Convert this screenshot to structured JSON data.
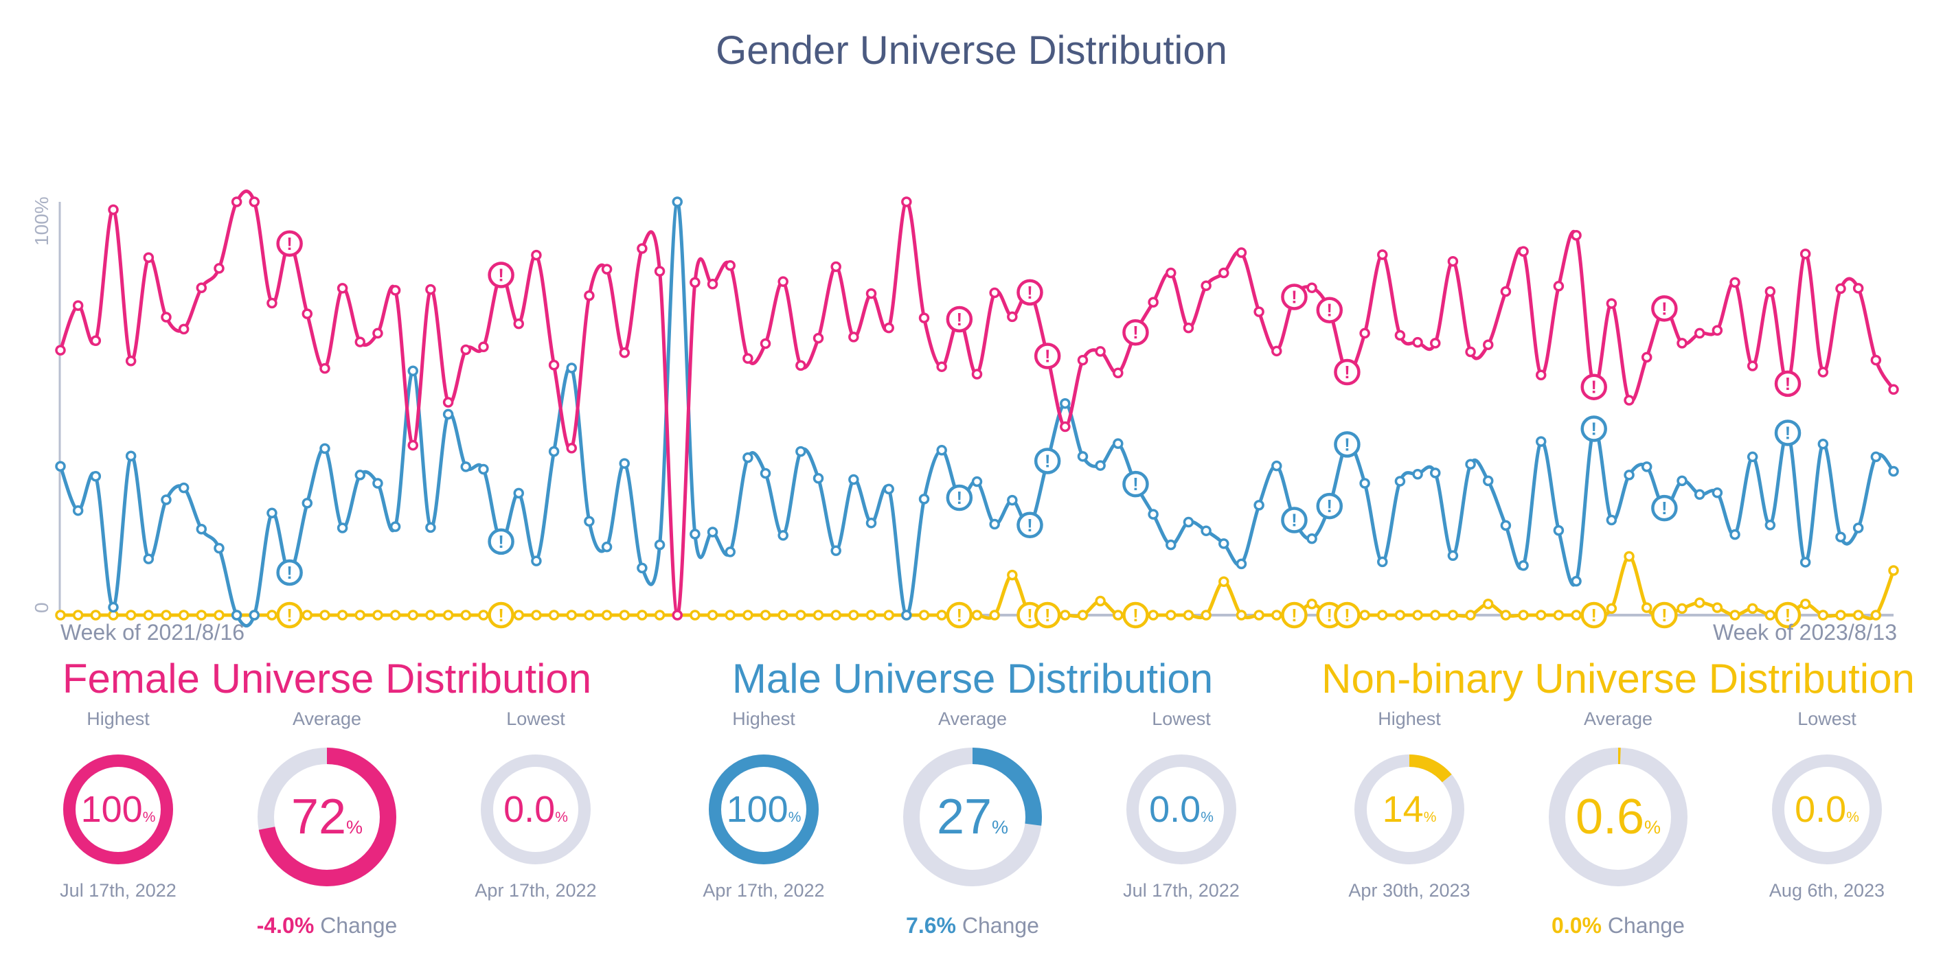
{
  "title": "Gender Universe Distribution",
  "chart_data": {
    "type": "line",
    "title": "Gender Universe Distribution",
    "x_interval": "week",
    "x_start_label": "Week of 2021/8/16",
    "x_end_label": "Week of 2023/8/13",
    "y_tick_labels": [
      "100%",
      "0"
    ],
    "ylim": [
      0,
      100
    ],
    "grid": false,
    "anomaly_indices": [
      13,
      25,
      51,
      55,
      56,
      61,
      70,
      72,
      73,
      87,
      91,
      98
    ],
    "series": [
      {
        "key": "female",
        "color": "#e8267f",
        "values": [
          64.1,
          74.9,
          66.4,
          98.1,
          61.5,
          86.5,
          72.1,
          69.2,
          79.2,
          83.9,
          100,
          100,
          75.5,
          89.9,
          72.9,
          59.7,
          79.1,
          66.1,
          68.2,
          78.6,
          41.1,
          78.8,
          51.5,
          64.2,
          64.9,
          82.3,
          70.5,
          87.1,
          60.5,
          40.4,
          77.3,
          83.7,
          63.5,
          88.7,
          83.2,
          0,
          80.5,
          80.1,
          84.6,
          62.1,
          65.7,
          80.7,
          60.4,
          67.0,
          84.3,
          67.3,
          77.8,
          69.5,
          100,
          71.9,
          60.1,
          71.6,
          58.3,
          78.0,
          72.2,
          78.1,
          62.7,
          45.6,
          61.7,
          63.8,
          58.6,
          68.4,
          75.7,
          82.8,
          69.5,
          79.7,
          82.8,
          87.7,
          73.4,
          63.9,
          77.0,
          79.2,
          73.8,
          58.8,
          68.2,
          87.2,
          67.7,
          66.0,
          65.8,
          85.6,
          63.7,
          65.4,
          78.3,
          88.0,
          58.1,
          79.6,
          91.9,
          55.2,
          75.4,
          52.0,
          62.4,
          74.2,
          65.8,
          68.2,
          68.9,
          80.5,
          60.3,
          78.3,
          56.0,
          87.4,
          58.8,
          79.0,
          79.1,
          61.7,
          54.6
        ]
      },
      {
        "key": "male",
        "color": "#3f94c8",
        "values": [
          36.0,
          25.3,
          33.6,
          1.9,
          38.5,
          13.6,
          27.9,
          30.8,
          20.8,
          16.2,
          0,
          0,
          24.7,
          10.3,
          27.1,
          40.3,
          21.1,
          33.9,
          31.9,
          21.4,
          59.1,
          21.2,
          48.6,
          35.9,
          35.3,
          17.8,
          29.5,
          13.1,
          39.6,
          59.8,
          22.7,
          16.5,
          36.7,
          11.4,
          17.0,
          100,
          19.6,
          20.1,
          15.3,
          38.1,
          34.3,
          19.3,
          39.6,
          33.1,
          15.6,
          32.8,
          22.3,
          30.5,
          0,
          28.1,
          39.9,
          28.4,
          32.3,
          22.0,
          27.8,
          21.8,
          37.3,
          51.2,
          38.4,
          36.2,
          41.5,
          31.7,
          24.4,
          17.0,
          22.5,
          20.4,
          17.3,
          12.4,
          26.6,
          36.1,
          23.0,
          18.5,
          26.4,
          41.3,
          31.9,
          12.9,
          32.4,
          34.1,
          34.4,
          14.4,
          36.5,
          32.5,
          21.7,
          12.0,
          42.0,
          20.5,
          8.2,
          45.1,
          23.0,
          33.9,
          35.9,
          25.9,
          32.5,
          29.2,
          29.6,
          19.5,
          38.3,
          21.8,
          44.1,
          12.8,
          41.4,
          18.9,
          21.1,
          38.3,
          34.8
        ]
      },
      {
        "key": "nonbinary",
        "color": "#f5c20a",
        "values": [
          0,
          0,
          0,
          0,
          0,
          0,
          0,
          0,
          0,
          0,
          0,
          0,
          0,
          0,
          0,
          0,
          0,
          0,
          0,
          0,
          0,
          0,
          0,
          0,
          0,
          0,
          0,
          0,
          0,
          0,
          0,
          0,
          0,
          0,
          0,
          0,
          0,
          0,
          0,
          0,
          0,
          0,
          0,
          0,
          0,
          0,
          0,
          0,
          0,
          0,
          0,
          0,
          0,
          0,
          9.7,
          0,
          0,
          0,
          0,
          3.4,
          0,
          0,
          0,
          0,
          0,
          0,
          8.1,
          0,
          0,
          0,
          0,
          2.7,
          0,
          0,
          0,
          0,
          0,
          0,
          0,
          0,
          0,
          2.7,
          0,
          0,
          0,
          0,
          0,
          0,
          1.6,
          14.2,
          1.8,
          0,
          1.6,
          3.0,
          1.8,
          0,
          1.6,
          0,
          0,
          2.7,
          0,
          0,
          0,
          0,
          10.8
        ]
      }
    ]
  },
  "stats": {
    "female": {
      "title": "Female Universe Distribution",
      "color": "#e8267f",
      "highest": {
        "label": "Highest",
        "value": "100",
        "unit": "%",
        "fraction": 1.0,
        "date": "Jul 17th, 2022"
      },
      "average": {
        "label": "Average",
        "value": "72",
        "unit": "%",
        "fraction": 0.72,
        "change": "-4.0%",
        "change_label": "Change"
      },
      "lowest": {
        "label": "Lowest",
        "value": "0.0",
        "unit": "%",
        "fraction": 0.0,
        "date": "Apr 17th, 2022"
      }
    },
    "male": {
      "title": "Male Universe Distribution",
      "color": "#3f94c8",
      "highest": {
        "label": "Highest",
        "value": "100",
        "unit": "%",
        "fraction": 1.0,
        "date": "Apr 17th, 2022"
      },
      "average": {
        "label": "Average",
        "value": "27",
        "unit": "%",
        "fraction": 0.27,
        "change": "7.6%",
        "change_label": "Change"
      },
      "lowest": {
        "label": "Lowest",
        "value": "0.0",
        "unit": "%",
        "fraction": 0.0,
        "date": "Jul 17th, 2022"
      }
    },
    "nonbinary": {
      "title": "Non-binary Universe Distribution",
      "color": "#f5c20a",
      "highest": {
        "label": "Highest",
        "value": "14",
        "unit": "%",
        "fraction": 0.14,
        "date": "Apr 30th, 2023"
      },
      "average": {
        "label": "Average",
        "value": "0.6",
        "unit": "%",
        "fraction": 0.006,
        "change": "0.0%",
        "change_label": "Change"
      },
      "lowest": {
        "label": "Lowest",
        "value": "0.0",
        "unit": "%",
        "fraction": 0.0,
        "date": "Aug 6th, 2023"
      }
    }
  }
}
